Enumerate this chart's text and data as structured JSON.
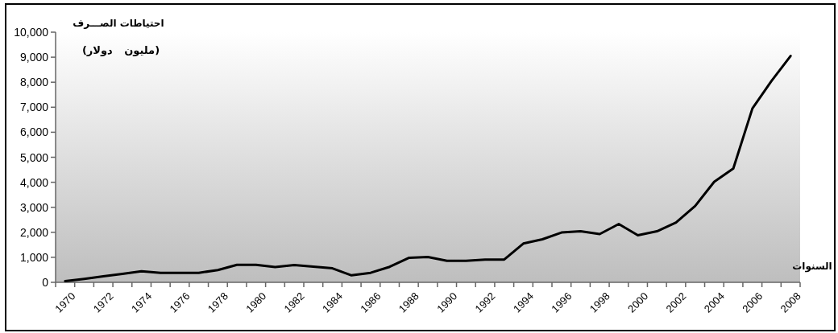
{
  "chart_data": {
    "type": "line",
    "title": "احتياطات الصـــرف",
    "subtitle": "(مليون دولار)",
    "xlabel": "السنوات",
    "categories": [
      "1970",
      null,
      "1972",
      null,
      "1974",
      null,
      "1976",
      null,
      "1978",
      null,
      "1980",
      null,
      "1982",
      null,
      "1984",
      null,
      "1986",
      null,
      "1988",
      null,
      "1990",
      null,
      "1992",
      null,
      "1994",
      null,
      "1996",
      null,
      "1998",
      null,
      "2000",
      null,
      "2002",
      null,
      "2004",
      null,
      "2006",
      null,
      "2008"
    ],
    "series": [
      {
        "color": "#000000",
        "values": [
          50,
          140,
          240,
          340,
          440,
          380,
          380,
          380,
          490,
          700,
          700,
          610,
          690,
          630,
          560,
          280,
          380,
          620,
          980,
          1010,
          860,
          860,
          910,
          910,
          1550,
          1720,
          1990,
          2040,
          1930,
          2330,
          1880,
          2040,
          2390,
          3050,
          4020,
          4550,
          6950,
          8050,
          9050
        ]
      }
    ],
    "ylim": [
      0,
      10000
    ],
    "yticks": [
      0,
      {
        "value": 1000,
        "label": "1,000"
      },
      {
        "value": 2000,
        "label": "2,000"
      },
      {
        "value": 3000,
        "label": "3,000"
      },
      {
        "value": 4000,
        "label": "4,000"
      },
      {
        "value": 5000,
        "label": "5,000"
      },
      {
        "value": 6000,
        "label": "6,000"
      },
      {
        "value": 7000,
        "label": "7,000"
      },
      {
        "value": 8000,
        "label": "8,000"
      },
      {
        "value": 9000,
        "label": "9,000"
      },
      {
        "value": 10000,
        "label": "10,000"
      }
    ],
    "line_style": "solid"
  }
}
